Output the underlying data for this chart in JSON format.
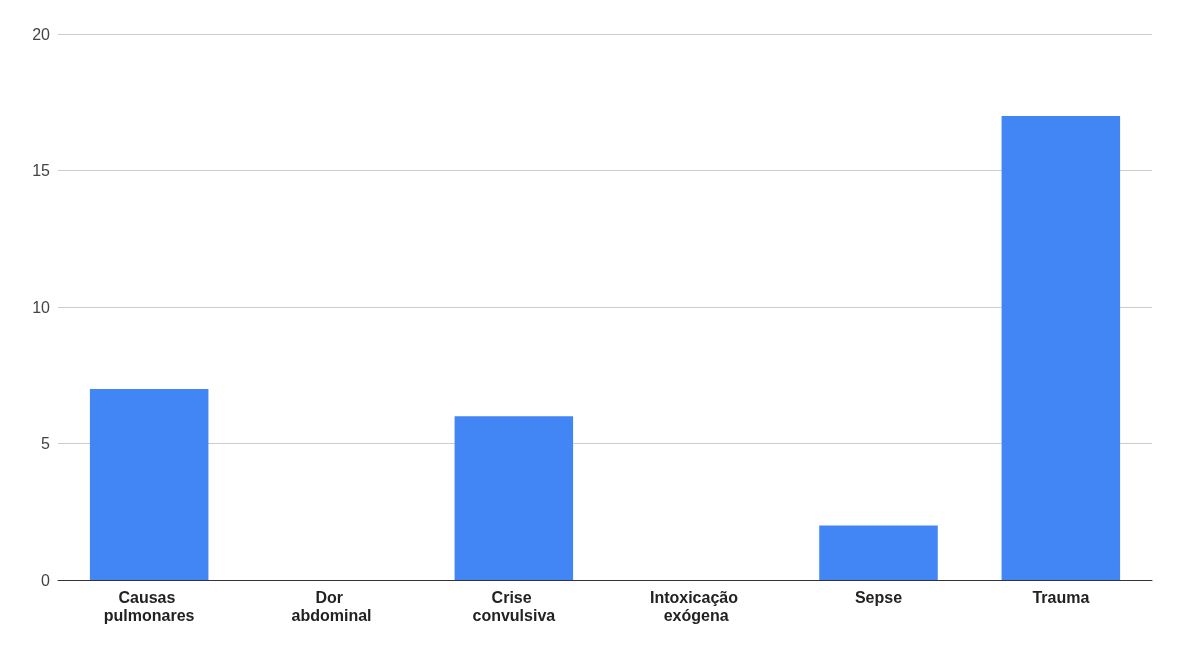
{
  "chart_data": {
    "type": "bar",
    "categories": [
      "Causas pulmonares",
      "Dor abdominal",
      "Crise convulsiva",
      "Intoxicação exógena",
      "Sepse",
      "Trauma"
    ],
    "values": [
      7,
      0,
      6,
      0,
      2,
      17
    ],
    "color": "#4285f4",
    "ylim": [
      0,
      20
    ],
    "yticks": [
      0,
      5,
      10,
      15,
      20
    ],
    "grid": true
  }
}
